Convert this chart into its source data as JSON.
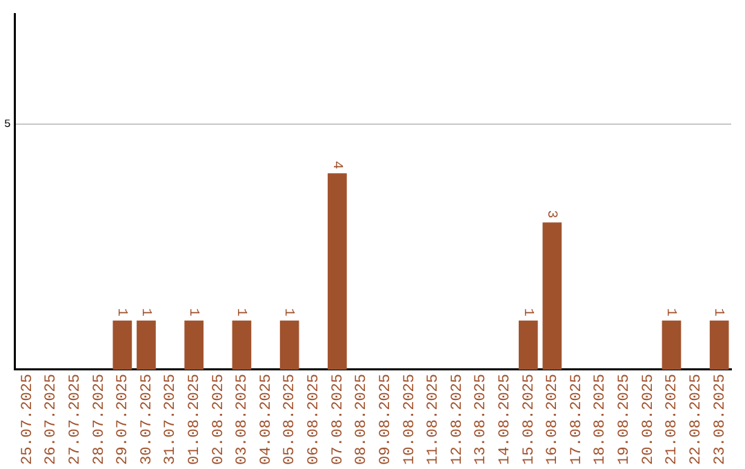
{
  "chart_data": {
    "type": "bar",
    "categories": [
      "25.07.2025",
      "26.07.2025",
      "27.07.2025",
      "28.07.2025",
      "29.07.2025",
      "30.07.2025",
      "31.07.2025",
      "01.08.2025",
      "02.08.2025",
      "03.08.2025",
      "04.08.2025",
      "05.08.2025",
      "06.08.2025",
      "07.08.2025",
      "08.08.2025",
      "09.08.2025",
      "10.08.2025",
      "11.08.2025",
      "12.08.2025",
      "13.08.2025",
      "14.08.2025",
      "15.08.2025",
      "16.08.2025",
      "17.08.2025",
      "18.08.2025",
      "19.08.2025",
      "20.08.2025",
      "21.08.2025",
      "22.08.2025",
      "23.08.2025"
    ],
    "values": [
      0,
      0,
      0,
      0,
      1,
      1,
      0,
      1,
      0,
      1,
      0,
      1,
      0,
      4,
      0,
      0,
      0,
      0,
      0,
      0,
      0,
      1,
      3,
      0,
      0,
      0,
      0,
      1,
      0,
      1
    ],
    "value_labels": [
      null,
      null,
      null,
      null,
      "1",
      "1",
      null,
      "1",
      null,
      "1",
      null,
      "1",
      null,
      "4",
      null,
      null,
      null,
      null,
      null,
      null,
      null,
      "1",
      "3",
      null,
      null,
      null,
      null,
      "1",
      null,
      "1"
    ],
    "color": "#a0522d",
    "ylim": [
      0,
      7.25
    ],
    "yticks": [
      5
    ],
    "grid": "y",
    "legend": false
  }
}
